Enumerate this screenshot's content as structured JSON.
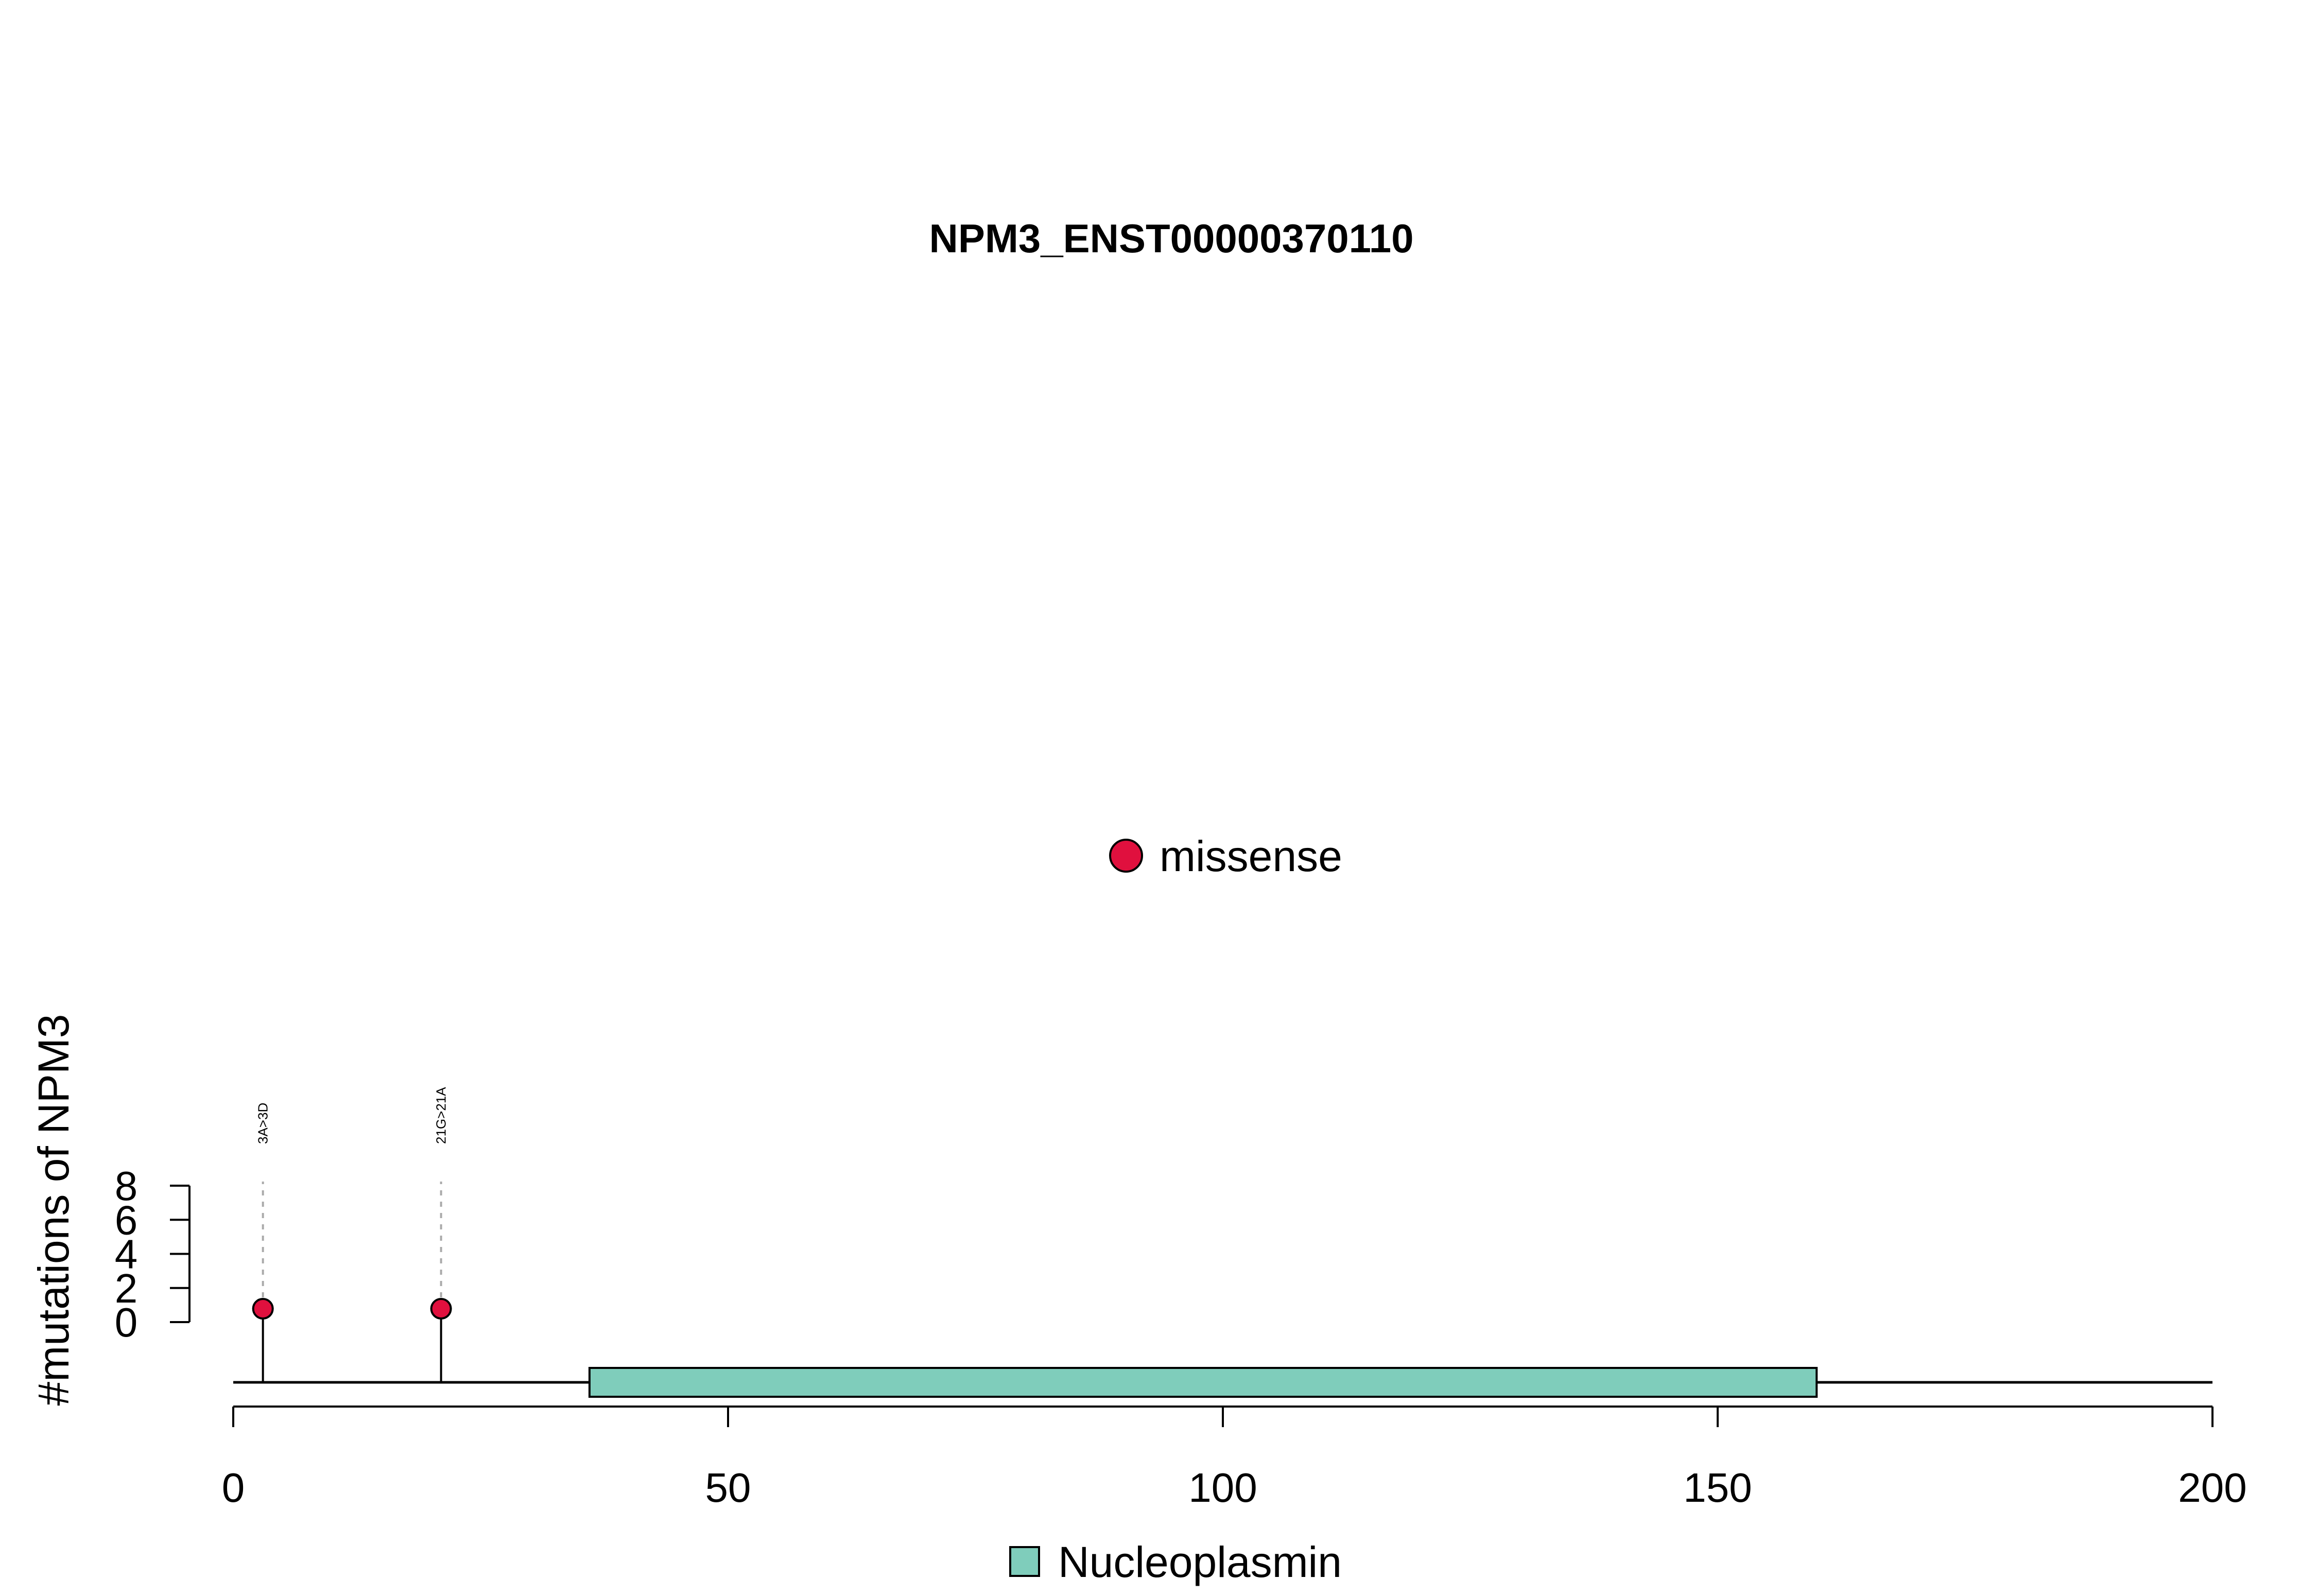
{
  "chart_data": {
    "type": "lollipop",
    "title": "NPM3_ENST00000370110",
    "ylabel": "#mutations of NPM3",
    "protein_length": 200,
    "x_ticks": [
      0,
      50,
      100,
      150,
      200
    ],
    "xlim": [
      0,
      200
    ],
    "y_ticks": [
      0,
      2,
      4,
      6,
      8
    ],
    "ylim": [
      0,
      8
    ],
    "mutations": [
      {
        "position": 3,
        "count": 1,
        "label": "3A>3D",
        "type": "missense"
      },
      {
        "position": 21,
        "count": 1,
        "label": "21G>21A",
        "type": "missense"
      }
    ],
    "domains": [
      {
        "name": "Nucleoplasmin",
        "start": 36,
        "end": 160,
        "color": "#7fcdbb"
      }
    ],
    "legend_mutation": {
      "label": "missense",
      "color": "#e0103e"
    },
    "legend_domain": {
      "label": "Nucleoplasmin",
      "color": "#7fcdbb"
    }
  }
}
